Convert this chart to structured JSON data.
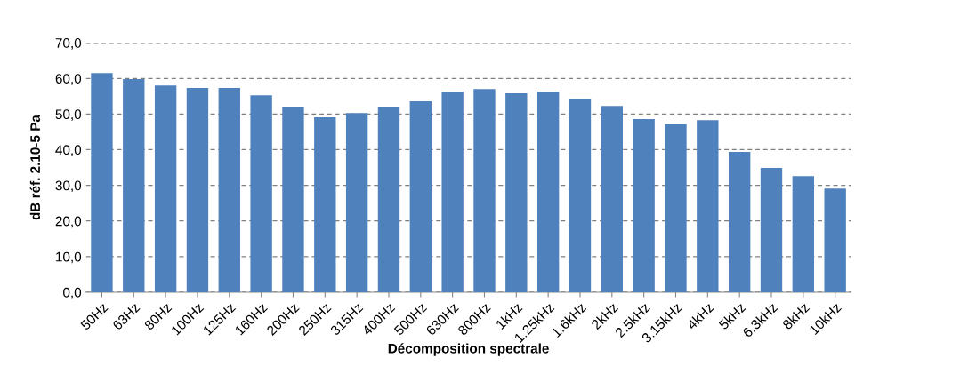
{
  "chart_data": {
    "type": "bar",
    "xlabel": "Décomposition spectrale",
    "ylabel": "dB réf. 2.10-5 Pa",
    "categories": [
      "50Hz",
      "63Hz",
      "80Hz",
      "100Hz",
      "125Hz",
      "160Hz",
      "200Hz",
      "250Hz",
      "315Hz",
      "400Hz",
      "500Hz",
      "630Hz",
      "800Hz",
      "1kHz",
      "1.25kHz",
      "1.6kHz",
      "2kHz",
      "2.5kHz",
      "3.15kHz",
      "4kHz",
      "5kHz",
      "6.3kHz",
      "8kHz",
      "10kHz"
    ],
    "values": [
      61.5,
      59.8,
      58.0,
      57.3,
      57.3,
      55.3,
      52.1,
      49.1,
      50.3,
      52.1,
      53.6,
      56.3,
      57.0,
      55.8,
      56.3,
      54.3,
      52.3,
      48.6,
      47.1,
      48.3,
      39.4,
      34.9,
      32.6,
      29.1
    ],
    "color": "#4f81bd",
    "ylim": [
      0,
      70
    ],
    "yticks": [
      {
        "value": 0,
        "label": "0,0"
      },
      {
        "value": 10,
        "label": "10,0"
      },
      {
        "value": 20,
        "label": "20,0"
      },
      {
        "value": 30,
        "label": "30,0"
      },
      {
        "value": 40,
        "label": "40,0"
      },
      {
        "value": 50,
        "label": "50,0"
      },
      {
        "value": 60,
        "label": "60,0"
      },
      {
        "value": 70,
        "label": "70,0"
      }
    ],
    "grid": "y",
    "line_style": "dashed"
  }
}
